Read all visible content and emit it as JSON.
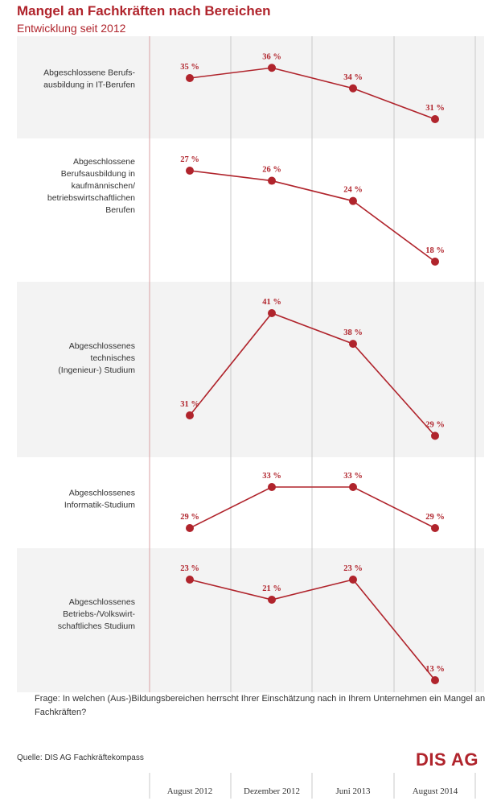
{
  "header": {
    "title": "Mangel an Fachkräften nach Bereichen",
    "subtitle": "Entwicklung seit 2012"
  },
  "footer": {
    "question": "Frage: In welchen (Aus-)Bildungsbereichen herrscht Ihrer Einschätzung nach in Ihrem Unternehmen ein Mangel an Fachkräften?",
    "source": "Quelle:  DIS AG Fachkräftekompass",
    "logo": "DIS AG"
  },
  "colors": {
    "accent": "#b0242c",
    "band": "#f3f3f3",
    "gridline": "#c8c8c8",
    "text": "#333333"
  },
  "chart_data": {
    "type": "line",
    "title": "Mangel an Fachkräften nach Bereichen",
    "subtitle": "Entwicklung seit 2012",
    "categories": [
      "August 2012",
      "Dezember 2012",
      "Juni 2013",
      "August 2014"
    ],
    "unit": "%",
    "series": [
      {
        "name": "Abgeschlossene Berufsausbildung in IT-Berufen",
        "label_lines": [
          "Abgeschlossene Berufs-",
          "ausbildung in IT-Berufen"
        ],
        "values": [
          35,
          36,
          34,
          31
        ],
        "value_labels": [
          "35 %",
          "36 %",
          "34 %",
          "31 %"
        ]
      },
      {
        "name": "Abgeschlossene Berufsausbildung in kaufmännischen/betriebswirtschaftlichen Berufen",
        "label_lines": [
          "Abgeschlossene",
          "Berufsausbildung in",
          "kaufmännischen/",
          "betriebswirtschaftlichen",
          "Berufen"
        ],
        "values": [
          27,
          26,
          24,
          18
        ],
        "value_labels": [
          "27 %",
          "26 %",
          "24 %",
          "18 %"
        ]
      },
      {
        "name": "Abgeschlossenes technisches (Ingenieur-) Studium",
        "label_lines": [
          "Abgeschlossenes",
          "technisches",
          "(Ingenieur-) Studium"
        ],
        "values": [
          31,
          41,
          38,
          29
        ],
        "value_labels": [
          "31 %",
          "41 %",
          "38 %",
          "29 %"
        ]
      },
      {
        "name": "Abgeschlossenes Informatik-Studium",
        "label_lines": [
          "Abgeschlossenes",
          "Informatik-Studium"
        ],
        "values": [
          29,
          33,
          33,
          29
        ],
        "value_labels": [
          "29 %",
          "33 %",
          "33 %",
          "29 %"
        ]
      },
      {
        "name": "Abgeschlossenes Betriebs-/Volkswirtschaftliches Studium",
        "label_lines": [
          "Abgeschlossenes",
          "Betriebs-/Volkswirt-",
          "schaftliches Studium"
        ],
        "values": [
          23,
          21,
          23,
          13
        ],
        "value_labels": [
          "23 %",
          "21 %",
          "23 %",
          "13 %"
        ]
      }
    ],
    "grid": true,
    "legend": "none",
    "bands": "alternating"
  }
}
